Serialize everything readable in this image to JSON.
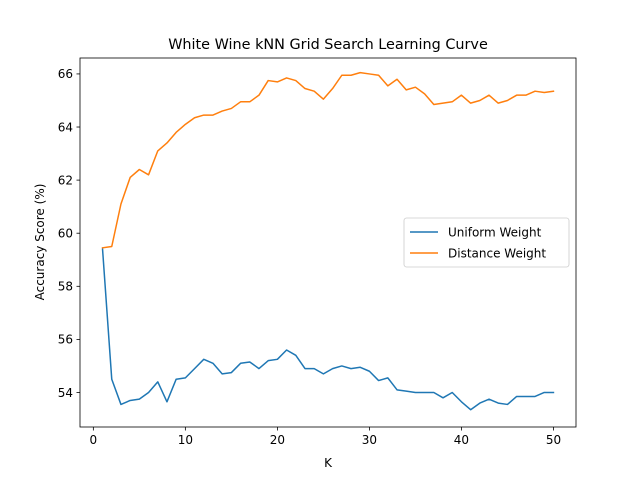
{
  "chart_data": {
    "type": "line",
    "title": "White Wine kNN Grid Search Learning Curve",
    "xlabel": "K",
    "ylabel": "Accuracy Score (%)",
    "xlim": [
      -1.45,
      52.45
    ],
    "ylim": [
      52.7,
      66.6
    ],
    "xticks": [
      0,
      10,
      20,
      30,
      40,
      50
    ],
    "yticks": [
      54,
      56,
      58,
      60,
      62,
      64,
      66
    ],
    "grid": false,
    "legend_position": "center-right",
    "x": [
      1,
      2,
      3,
      4,
      5,
      6,
      7,
      8,
      9,
      10,
      11,
      12,
      13,
      14,
      15,
      16,
      17,
      18,
      19,
      20,
      21,
      22,
      23,
      24,
      25,
      26,
      27,
      28,
      29,
      30,
      31,
      32,
      33,
      34,
      35,
      36,
      37,
      38,
      39,
      40,
      41,
      42,
      43,
      44,
      45,
      46,
      47,
      48,
      49,
      50
    ],
    "series": [
      {
        "name": "Uniform Weight",
        "color": "#1f77b4",
        "values": [
          59.4,
          54.5,
          53.55,
          53.7,
          53.75,
          54.0,
          54.4,
          53.65,
          54.5,
          54.55,
          54.9,
          55.25,
          55.1,
          54.7,
          54.75,
          55.1,
          55.15,
          54.9,
          55.2,
          55.25,
          55.6,
          55.4,
          54.9,
          54.9,
          54.7,
          54.9,
          55.0,
          54.9,
          54.95,
          54.8,
          54.45,
          54.55,
          54.1,
          54.05,
          54.0,
          54.0,
          54.0,
          53.8,
          54.0,
          53.65,
          53.35,
          53.6,
          53.75,
          53.6,
          53.55,
          53.85,
          53.85,
          53.85,
          54.0,
          54.0
        ]
      },
      {
        "name": "Distance Weight",
        "color": "#ff7f0e",
        "values": [
          59.45,
          59.5,
          61.1,
          62.1,
          62.4,
          62.2,
          63.1,
          63.4,
          63.8,
          64.1,
          64.35,
          64.45,
          64.45,
          64.6,
          64.7,
          64.95,
          64.95,
          65.2,
          65.75,
          65.7,
          65.85,
          65.75,
          65.45,
          65.35,
          65.05,
          65.45,
          65.95,
          65.95,
          66.05,
          66.0,
          65.95,
          65.55,
          65.8,
          65.4,
          65.5,
          65.25,
          64.85,
          64.9,
          64.95,
          65.2,
          64.9,
          65.0,
          65.2,
          64.9,
          65.0,
          65.2,
          65.2,
          65.35,
          65.3,
          65.35
        ]
      }
    ]
  }
}
